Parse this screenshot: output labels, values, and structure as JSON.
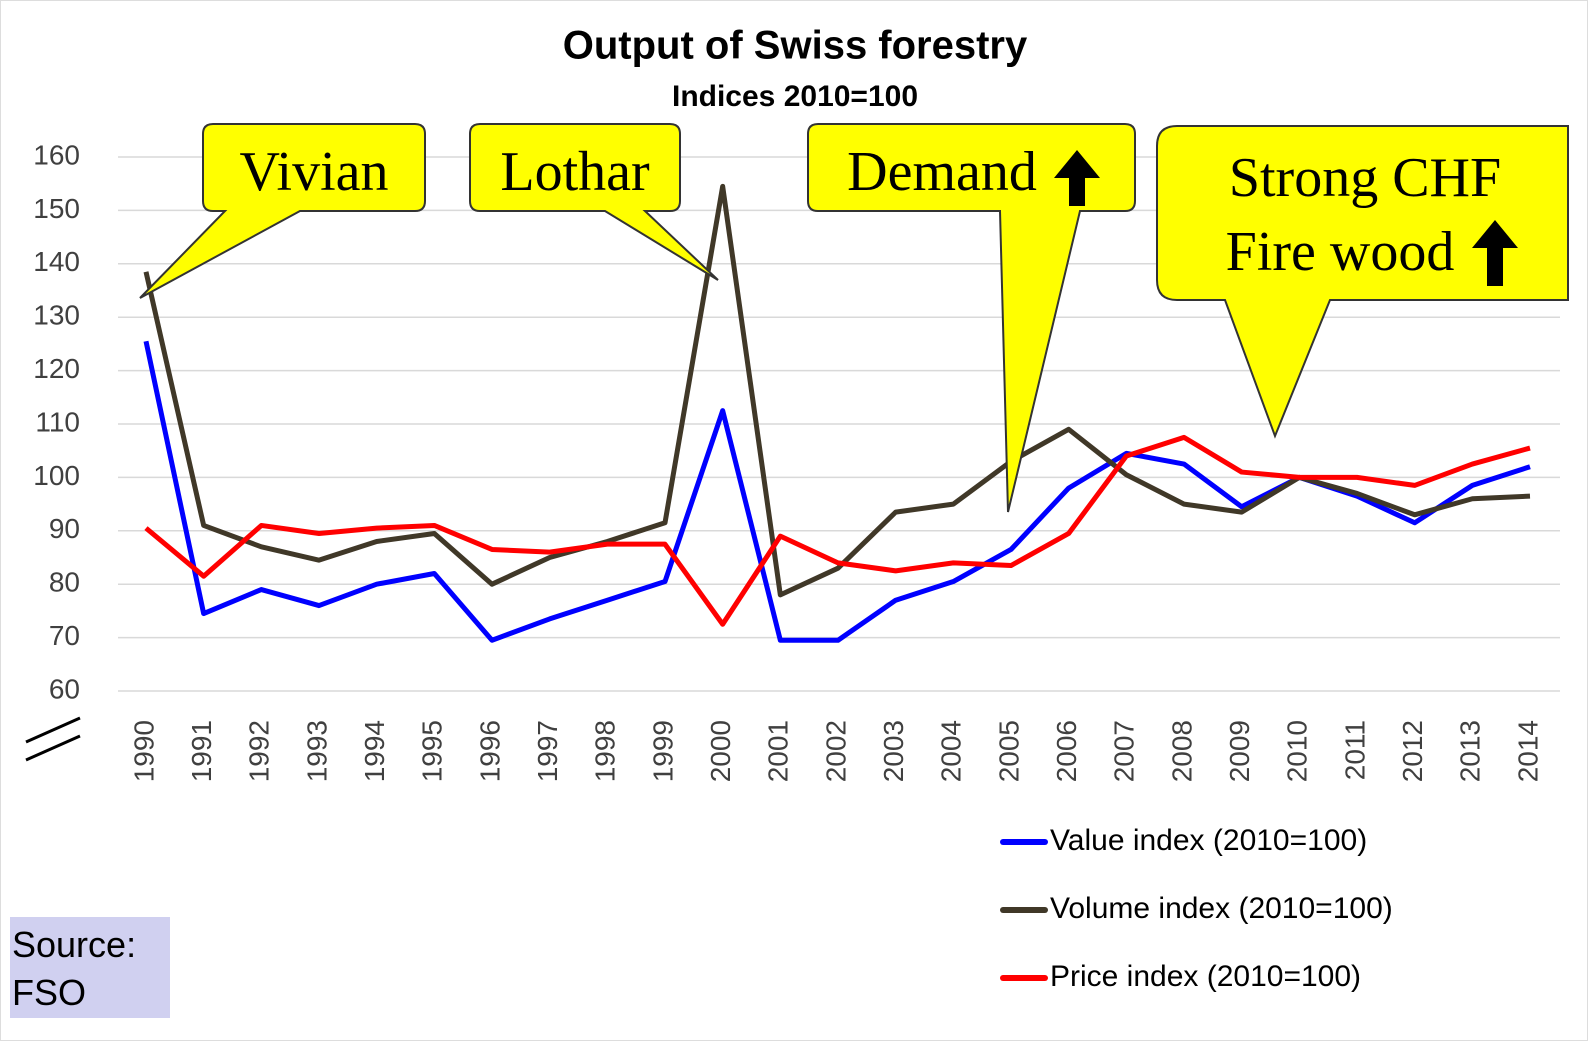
{
  "chart_data": {
    "type": "line",
    "title": "Output of Swiss forestry",
    "subtitle": "Indices 2010=100",
    "categories": [
      "1990",
      "1991",
      "1992",
      "1993",
      "1994",
      "1995",
      "1996",
      "1997",
      "1998",
      "1999",
      "2000",
      "2001",
      "2002",
      "2003",
      "2004",
      "2005",
      "2006",
      "2007",
      "2008",
      "2009",
      "2010",
      "2011",
      "2012",
      "2013",
      "2014"
    ],
    "series": [
      {
        "name": "Value index (2010=100)",
        "color": "#0000ff",
        "values": [
          125.5,
          74.5,
          79,
          76,
          80,
          82,
          69.5,
          73.5,
          77,
          80.5,
          112.5,
          69.5,
          69.5,
          77,
          80.5,
          86.5,
          98,
          104.5,
          102.5,
          94.5,
          100,
          96.5,
          91.5,
          98.5,
          102
        ]
      },
      {
        "name": "Volume index (2010=100)",
        "color": "#403828",
        "values": [
          138.5,
          91,
          87,
          84.5,
          88,
          89.5,
          80,
          85,
          88,
          91.5,
          154.5,
          78,
          83,
          93.5,
          95,
          103,
          109,
          100.5,
          95,
          93.5,
          100,
          97,
          93,
          96,
          96.5
        ]
      },
      {
        "name": "Price index (2010=100)",
        "color": "#ff0000",
        "values": [
          90.5,
          81.5,
          91,
          89.5,
          90.5,
          91,
          86.5,
          86,
          87.5,
          87.5,
          72.5,
          89,
          84,
          82.5,
          84,
          83.5,
          89.5,
          104,
          107.5,
          101,
          100,
          100,
          98.5,
          102.5,
          105.5
        ]
      }
    ],
    "ylim": [
      60,
      160
    ],
    "yticks": [
      60,
      70,
      80,
      90,
      100,
      110,
      120,
      130,
      140,
      150,
      160
    ],
    "grid": true,
    "legend": "bottom-right",
    "annotations": [
      {
        "lines": [
          "Vivian"
        ]
      },
      {
        "lines": [
          "Lothar"
        ]
      },
      {
        "lines": [
          "Demand"
        ]
      },
      {
        "lines": [
          "Strong CHF",
          "Fire wood"
        ]
      }
    ],
    "source": "Source: FSO"
  }
}
